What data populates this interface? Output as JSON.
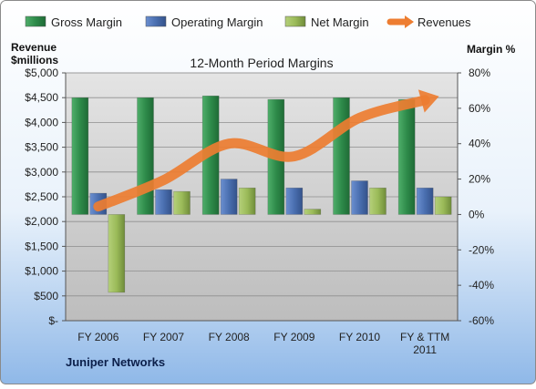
{
  "chart_data": {
    "type": "bar",
    "title": "12-Month Period Margins",
    "company": "Juniper Networks",
    "left_axis_label": [
      "Revenue",
      "$millions"
    ],
    "right_axis_label": "Margin %",
    "categories": [
      "FY 2006",
      "FY 2007",
      "FY 2008",
      "FY 2009",
      "FY 2010",
      "FY & TTM 2011"
    ],
    "left_axis": {
      "min": 0,
      "max": 5000,
      "step": 500,
      "tick_labels": [
        "$-",
        "$500",
        "$1,000",
        "$1,500",
        "$2,000",
        "$2,500",
        "$3,000",
        "$3,500",
        "$4,000",
        "$4,500",
        "$5,000"
      ]
    },
    "right_axis": {
      "min": -60,
      "max": 80,
      "step": 20,
      "tick_labels": [
        "-60%",
        "-40%",
        "-20%",
        "0%",
        "20%",
        "40%",
        "60%",
        "80%"
      ]
    },
    "series": [
      {
        "name": "Gross Margin",
        "axis": "right",
        "color": "#2e8b4a",
        "values": [
          66,
          66,
          67,
          65,
          66,
          65
        ]
      },
      {
        "name": "Operating Margin",
        "axis": "right",
        "color": "#4a6fb0",
        "values": [
          12,
          14,
          20,
          15,
          19,
          15
        ]
      },
      {
        "name": "Net Margin",
        "axis": "right",
        "color": "#9bbb59",
        "values": [
          -44,
          13,
          15,
          3,
          15,
          10
        ]
      },
      {
        "name": "Revenues",
        "axis": "left",
        "type": "line",
        "color": "#ed7d31",
        "values": [
          2304,
          2836,
          3572,
          3316,
          4093,
          4450
        ]
      }
    ],
    "legend_position": "top",
    "grid": true
  }
}
